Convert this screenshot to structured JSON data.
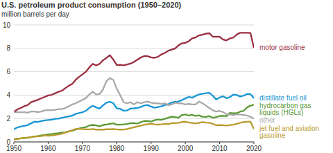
{
  "chart_data": {
    "type": "line",
    "title": "U.S. petroleum product consumption (1950–2020)",
    "subtitle": "million barrels per day",
    "x": [
      1950,
      1951,
      1952,
      1953,
      1954,
      1955,
      1956,
      1957,
      1958,
      1959,
      1960,
      1961,
      1962,
      1963,
      1964,
      1965,
      1966,
      1967,
      1968,
      1969,
      1970,
      1971,
      1972,
      1973,
      1974,
      1975,
      1976,
      1977,
      1978,
      1979,
      1980,
      1981,
      1982,
      1983,
      1984,
      1985,
      1986,
      1987,
      1988,
      1989,
      1990,
      1991,
      1992,
      1993,
      1994,
      1995,
      1996,
      1997,
      1998,
      1999,
      2000,
      2001,
      2002,
      2003,
      2004,
      2005,
      2006,
      2007,
      2008,
      2009,
      2010,
      2011,
      2012,
      2013,
      2014,
      2015,
      2016,
      2017,
      2018,
      2019,
      2020
    ],
    "xlim": [
      1950,
      2020
    ],
    "xticks": [
      1950,
      1960,
      1970,
      1980,
      1990,
      2000,
      2010,
      2020
    ],
    "ylim": [
      0,
      10
    ],
    "yticks": [
      0,
      2,
      4,
      6,
      8,
      10
    ],
    "grid": true,
    "series": [
      {
        "name": "motor gasoline",
        "color": "#9b2d3f",
        "values": [
          2.56,
          2.78,
          2.9,
          3.05,
          3.15,
          3.4,
          3.5,
          3.6,
          3.73,
          3.85,
          3.97,
          4.02,
          4.15,
          4.28,
          4.38,
          4.59,
          4.8,
          4.95,
          5.3,
          5.55,
          5.78,
          6.0,
          6.37,
          6.67,
          6.54,
          6.67,
          6.98,
          7.18,
          7.41,
          7.03,
          6.58,
          6.59,
          6.54,
          6.62,
          6.69,
          6.83,
          7.03,
          7.21,
          7.34,
          7.33,
          7.23,
          7.19,
          7.27,
          7.48,
          7.6,
          7.79,
          7.89,
          7.98,
          8.25,
          8.43,
          8.47,
          8.61,
          8.85,
          8.93,
          9.11,
          9.16,
          9.25,
          9.29,
          8.99,
          9.0,
          8.99,
          8.75,
          8.68,
          8.84,
          8.92,
          9.18,
          9.33,
          9.33,
          9.33,
          9.31,
          8.03
        ]
      },
      {
        "name": "distillate fuel oil",
        "color": "#1896d4",
        "values": [
          1.08,
          1.24,
          1.31,
          1.37,
          1.43,
          1.59,
          1.73,
          1.71,
          1.78,
          1.84,
          1.87,
          1.9,
          1.97,
          1.99,
          2.06,
          2.13,
          2.18,
          2.24,
          2.39,
          2.47,
          2.54,
          2.66,
          2.91,
          3.09,
          2.95,
          2.85,
          3.13,
          3.35,
          3.43,
          3.31,
          2.87,
          2.83,
          2.67,
          2.69,
          2.85,
          2.87,
          2.91,
          2.98,
          3.12,
          3.16,
          3.02,
          2.92,
          2.98,
          3.04,
          3.16,
          3.21,
          3.37,
          3.44,
          3.46,
          3.57,
          3.72,
          3.85,
          3.78,
          3.93,
          4.06,
          4.12,
          4.17,
          4.2,
          3.95,
          3.63,
          3.8,
          3.9,
          3.74,
          3.83,
          4.04,
          4.0,
          3.88,
          3.95,
          4.1,
          4.08,
          3.75
        ]
      },
      {
        "name": "hydrocarbon gas liquids (HGLs)",
        "color": "#5a9a37",
        "values": [
          0.23,
          0.28,
          0.3,
          0.33,
          0.35,
          0.4,
          0.46,
          0.49,
          0.55,
          0.6,
          0.64,
          0.67,
          0.72,
          0.75,
          0.8,
          0.82,
          0.9,
          0.95,
          1.05,
          1.15,
          1.22,
          1.26,
          1.41,
          1.45,
          1.41,
          1.33,
          1.45,
          1.49,
          1.55,
          1.59,
          1.47,
          1.47,
          1.5,
          1.53,
          1.6,
          1.6,
          1.57,
          1.68,
          1.79,
          1.79,
          1.74,
          1.86,
          1.92,
          1.89,
          1.97,
          2.06,
          2.15,
          2.13,
          2.06,
          2.3,
          2.35,
          2.25,
          2.31,
          2.22,
          2.27,
          2.15,
          2.14,
          2.21,
          2.06,
          2.12,
          2.22,
          2.23,
          2.2,
          2.48,
          2.44,
          2.46,
          2.59,
          2.66,
          2.95,
          3.1,
          3.18
        ]
      },
      {
        "name": "other",
        "color": "#a8a8a8",
        "values": [
          2.52,
          2.55,
          2.52,
          2.55,
          2.5,
          2.6,
          2.6,
          2.55,
          2.6,
          2.7,
          2.72,
          2.72,
          2.75,
          2.8,
          2.8,
          2.9,
          3.05,
          3.2,
          3.3,
          3.45,
          3.6,
          3.75,
          4.05,
          4.3,
          4.05,
          4.1,
          4.5,
          5.2,
          5.45,
          5.3,
          4.55,
          4.0,
          3.4,
          3.3,
          3.4,
          3.2,
          3.4,
          3.3,
          3.4,
          3.45,
          3.35,
          3.3,
          3.3,
          3.25,
          3.3,
          3.15,
          3.2,
          3.35,
          3.3,
          3.3,
          3.2,
          3.25,
          3.2,
          3.2,
          3.45,
          3.3,
          3.1,
          2.9,
          2.7,
          2.6,
          2.65,
          2.55,
          2.35,
          2.35,
          2.3,
          2.35,
          2.35,
          2.3,
          2.25,
          2.15,
          2.0
        ]
      },
      {
        "name": "jet fuel and aviation gasoline",
        "color": "#b99a2c",
        "values": [
          0.2,
          0.25,
          0.3,
          0.35,
          0.38,
          0.42,
          0.45,
          0.48,
          0.5,
          0.55,
          0.53,
          0.55,
          0.6,
          0.65,
          0.7,
          0.8,
          0.9,
          1.0,
          1.1,
          1.12,
          1.1,
          1.08,
          1.07,
          1.1,
          1.05,
          1.05,
          1.05,
          1.08,
          1.08,
          1.1,
          1.07,
          1.05,
          1.06,
          1.1,
          1.18,
          1.25,
          1.33,
          1.39,
          1.47,
          1.52,
          1.55,
          1.5,
          1.48,
          1.5,
          1.55,
          1.52,
          1.6,
          1.6,
          1.63,
          1.7,
          1.73,
          1.66,
          1.62,
          1.58,
          1.64,
          1.69,
          1.65,
          1.64,
          1.55,
          1.42,
          1.44,
          1.43,
          1.4,
          1.44,
          1.47,
          1.55,
          1.63,
          1.7,
          1.72,
          1.73,
          1.1
        ]
      }
    ]
  }
}
